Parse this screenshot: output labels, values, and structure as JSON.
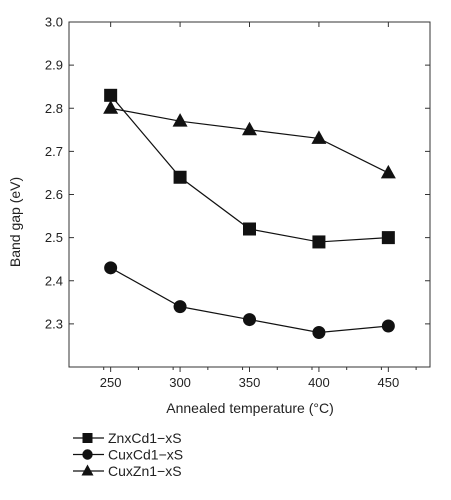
{
  "chart_data": {
    "type": "line",
    "title": "",
    "xlabel": "Annealed temperature (°C)",
    "ylabel": "Band gap (eV)",
    "x": [
      250,
      300,
      350,
      400,
      450
    ],
    "xlim": [
      220,
      480
    ],
    "ylim": [
      2.2,
      3.0
    ],
    "xticks": [
      250,
      300,
      350,
      400,
      450
    ],
    "yticks": [
      2.3,
      2.4,
      2.5,
      2.6,
      2.7,
      2.8,
      2.9,
      3.0
    ],
    "grid": false,
    "legend_position": "bottom-left",
    "series": [
      {
        "name": "ZnxCd1−xS",
        "marker": "square",
        "values": [
          2.83,
          2.64,
          2.52,
          2.49,
          2.5
        ]
      },
      {
        "name": "CuxCd1−xS",
        "marker": "circle",
        "values": [
          2.43,
          2.34,
          2.31,
          2.28,
          2.295
        ]
      },
      {
        "name": "CuxZn1−xS",
        "marker": "triangle",
        "values": [
          2.8,
          2.77,
          2.75,
          2.73,
          2.65
        ]
      }
    ],
    "colors": {
      "line": "#111111",
      "axis": "#333333",
      "text": "#222222"
    }
  }
}
